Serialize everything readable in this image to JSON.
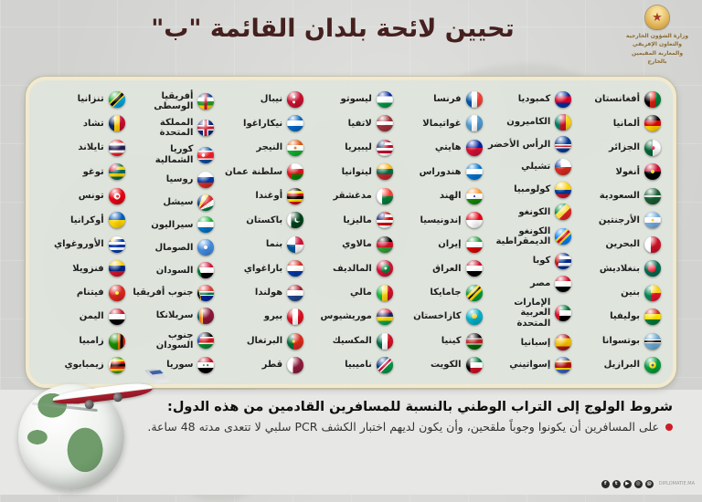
{
  "title": "تحيين لائحة بلدان القائمة \"ب\"",
  "ministry": {
    "emblem": "morocco-coat-of-arms",
    "lines": [
      "وزارة الشؤون الخارجية",
      "والتعاون الإفريقي",
      "والمغاربة المقيمين بالخارج"
    ]
  },
  "colors": {
    "title": "#45201e",
    "card_background": "#dfe4dd",
    "card_border": "#f1ead0",
    "accent_red": "#cf1b24",
    "page_background": "#d2d3d0"
  },
  "columns": [
    [
      {
        "n": "أفغانستان",
        "f": "linear-gradient(90deg,#000 33%,#d32011 33% 67%,#007a36 67%)"
      },
      {
        "n": "ألمانيا",
        "f": "linear-gradient(180deg,#000 33%,#dd0000 33% 67%,#ffce00 67%)"
      },
      {
        "n": "الجزائر",
        "f": "radial-gradient(circle at 52% 50%,#d21034 15%,rgba(0,0,0,0) 16%),linear-gradient(90deg,#006233 50%,#fff 50%)"
      },
      {
        "n": "أنغولا",
        "f": "radial-gradient(circle at 50% 50%,#ffcb00 15%,rgba(0,0,0,0) 16%),linear-gradient(180deg,#cc092f 50%,#000 50%)"
      },
      {
        "n": "السعودية",
        "f": "linear-gradient(0deg,rgba(0,0,0,0) 44%,rgba(255,255,255,.85) 44% 56%,rgba(0,0,0,0) 56%),#165d31"
      },
      {
        "n": "الأرجنتين",
        "f": "radial-gradient(circle at 50% 50%,#f6b40e 10%,rgba(0,0,0,0) 11%),linear-gradient(180deg,#74acdf 33%,#fff 33% 67%,#74acdf 67%)"
      },
      {
        "n": "البحرين",
        "f": "linear-gradient(90deg,#fff 38%,#ce1126 38%)"
      },
      {
        "n": "بنغلاديش",
        "f": "radial-gradient(circle at 45% 50%,#f42a41 32%,#006a4e 33%)"
      },
      {
        "n": "بنين",
        "f": "linear-gradient(90deg,#008751 40%,rgba(0,0,0,0) 40%),linear-gradient(180deg,#fcd116 50%,#e8112d 50%)"
      },
      {
        "n": "بوليفيا",
        "f": "linear-gradient(180deg,#d52b1e 33%,#f9e300 33% 67%,#007934 67%)"
      },
      {
        "n": "بوتسوانا",
        "f": "linear-gradient(180deg,#6da9d2 38%,#fff 38% 45%,#000 45% 55%,#fff 55% 62%,#6da9d2 62%)"
      },
      {
        "n": "البرازيل",
        "f": "radial-gradient(circle at 50% 50%,#002776 10%,#ffdf00 11% 29%,#009c3b 30%)"
      }
    ],
    [
      {
        "n": "كمبوديا",
        "f": "linear-gradient(180deg,#032ea1 30%,#e00025 30% 70%,#032ea1 70%)"
      },
      {
        "n": "الكاميرون",
        "f": "linear-gradient(90deg,#007a5e 33%,#ce1126 33% 67%,#fcd116 67%)"
      },
      {
        "n": "الرأس الأخضر",
        "f": "linear-gradient(180deg,#003893 50%,#fff 50% 58%,#cf2027 58% 66%,#fff 66% 74%,#003893 74%)"
      },
      {
        "n": "تشيلي",
        "f": "linear-gradient(0deg,#d52b1e 50%,rgba(0,0,0,0) 50%),linear-gradient(90deg,#0039a6 35%,#fff 35%)"
      },
      {
        "n": "كولومبيا",
        "f": "linear-gradient(180deg,#fcd116 50%,#003893 50% 75%,#ce1126 75%)"
      },
      {
        "n": "الكونغو",
        "f": "linear-gradient(135deg,#009543 35%,#fbde4a 35% 60%,#dc241f 60%)"
      },
      {
        "n": "الكونغو الديمقراطية",
        "f": "linear-gradient(135deg,#007fff 38%,#f7d618 38% 46%,#ce1021 46% 58%,#f7d618 58% 66%,#007fff 66%)"
      },
      {
        "n": "كوبا",
        "f": "linear-gradient(100deg,#cb1515 28%,rgba(0,0,0,0) 29%),linear-gradient(180deg,#002a8f 20%,#fff 20% 40%,#002a8f 40% 60%,#fff 60% 80%,#002a8f 80%)"
      },
      {
        "n": "مصر",
        "f": "linear-gradient(180deg,#ce1126 33%,#fff 33% 67%,#000 67%)"
      },
      {
        "n": "الإمارات العربية المتحدة",
        "f": "linear-gradient(90deg,#ce1126 28%,rgba(0,0,0,0) 28%),linear-gradient(180deg,#00732f 33%,#fff 33% 67%,#000 67%)"
      },
      {
        "n": "إسبانيا",
        "f": "linear-gradient(180deg,#aa151b 25%,#f1bf00 25% 75%,#aa151b 75%)"
      },
      {
        "n": "إسواتيني",
        "f": "linear-gradient(180deg,#3e5eb9 22%,#ffd900 22% 32%,#b10c0c 32% 68%,#ffd900 68% 78%,#3e5eb9 78%)"
      }
    ],
    [
      {
        "n": "فرنسا",
        "f": "linear-gradient(90deg,#0055a4 33%,#fff 33% 67%,#ef4135 67%)"
      },
      {
        "n": "غواتيمالا",
        "f": "linear-gradient(90deg,#4997d0 33%,#fff 33% 67%,#4997d0 67%)"
      },
      {
        "n": "هايتي",
        "f": "linear-gradient(180deg,#00209f 50%,#d21034 50%)"
      },
      {
        "n": "هندوراس",
        "f": "linear-gradient(180deg,#0073cf 33%,#fff 33% 67%,#0073cf 67%)"
      },
      {
        "n": "الهند",
        "f": "radial-gradient(circle at 50% 50%,#000088 8%,rgba(0,0,0,0) 9%),linear-gradient(180deg,#ff9933 33%,#fff 33% 67%,#128807 67%)"
      },
      {
        "n": "إندونيسيا",
        "f": "linear-gradient(180deg,#e70011 50%,#fff 50%)"
      },
      {
        "n": "إيران",
        "f": "linear-gradient(180deg,#239f40 33%,#fff 33% 67%,#da0000 67%)"
      },
      {
        "n": "العراق",
        "f": "linear-gradient(180deg,#ce1126 33%,#fff 33% 67%,#000 67%)"
      },
      {
        "n": "جامايكا",
        "f": "linear-gradient(135deg,#009b3a 36%,#fed100 36% 46%,#000 46% 54%,#fed100 54% 64%,#009b3a 64%)"
      },
      {
        "n": "كازاخستان",
        "f": "radial-gradient(circle at 50% 46%,#fec50c 22%,#00afca 23%)"
      },
      {
        "n": "كينيا",
        "f": "linear-gradient(180deg,#000 30%,#fff 30% 36%,#bb2222 36% 64%,#fff 64% 70%,#006600 70%)"
      },
      {
        "n": "الكويت",
        "f": "linear-gradient(90deg,#000 25%,rgba(0,0,0,0) 25%),linear-gradient(180deg,#007a3d 33%,#fff 33% 67%,#ce1126 67%)"
      }
    ],
    [
      {
        "n": "ليسوتو",
        "f": "linear-gradient(180deg,#00209f 30%,#fff 30% 70%,#009543 70%)"
      },
      {
        "n": "لاتفيا",
        "f": "linear-gradient(180deg,#9e3039 40%,#fff 40% 60%,#9e3039 60%)"
      },
      {
        "n": "ليبيريا",
        "f": "radial-gradient(circle at 22% 22%,#002868 24%,rgba(0,0,0,0) 25%),repeating-linear-gradient(180deg,#bf0a30 0 3px,#fff 3px 6px)"
      },
      {
        "n": "ليتوانيا",
        "f": "linear-gradient(180deg,#fdb913 33%,#006a44 33% 67%,#c1272d 67%)"
      },
      {
        "n": "مدغشقر",
        "f": "linear-gradient(90deg,#fff 33%,rgba(0,0,0,0) 33%),linear-gradient(180deg,#fc3d32 50%,#007e3a 50%)"
      },
      {
        "n": "ماليزيا",
        "f": "radial-gradient(circle at 22% 22%,#010066 25%,rgba(0,0,0,0) 26%),repeating-linear-gradient(180deg,#cc0001 0 3px,#fff 3px 6px)"
      },
      {
        "n": "مالاوي",
        "f": "linear-gradient(180deg,#000 33%,#ce1126 33% 67%,#339e35 67%)"
      },
      {
        "n": "المالديف",
        "f": "radial-gradient(circle at 55% 50%,#fff 10%,#00843d 11% 36%,#d21034 37%)"
      },
      {
        "n": "مالي",
        "f": "linear-gradient(90deg,#14b53a 33%,#fcd116 33% 67%,#ce1126 67%)"
      },
      {
        "n": "موريشيوس",
        "f": "linear-gradient(180deg,#ea2839 25%,#1a206d 25% 50%,#ffd500 50% 75%,#00a551 75%)"
      },
      {
        "n": "المكسيك",
        "f": "linear-gradient(90deg,#006847 33%,#fff 33% 67%,#ce1126 67%)"
      },
      {
        "n": "ناميبيا",
        "f": "linear-gradient(135deg,#003580 40%,#fff 40% 45%,#d21034 45% 55%,#fff 55% 60%,#009543 60%)"
      }
    ],
    [
      {
        "n": "نيبال",
        "f": "radial-gradient(circle at 42% 34%,#fff 9%,rgba(0,0,0,0) 10%),radial-gradient(circle at 42% 66%,#fff 9%,rgba(0,0,0,0) 10%),#c8102e"
      },
      {
        "n": "نيكاراغوا",
        "f": "linear-gradient(180deg,#0067c6 33%,#fff 33% 67%,#0067c6 67%)"
      },
      {
        "n": "النيجر",
        "f": "radial-gradient(circle at 50% 50%,#e05206 11%,rgba(0,0,0,0) 12%),linear-gradient(180deg,#e05206 33%,#fff 33% 67%,#0db02b 67%)"
      },
      {
        "n": "سلطنة عمان",
        "f": "linear-gradient(90deg,#db161b 28%,rgba(0,0,0,0) 28%),linear-gradient(180deg,#fff 33%,#db161b 33% 67%,#008000 67%)"
      },
      {
        "n": "أوغندا",
        "f": "linear-gradient(180deg,#000 17%,#fcdc04 17% 33%,#d90000 33% 50%,#000 50% 67%,#fcdc04 67% 83%,#d90000 83%)"
      },
      {
        "n": "باكستان",
        "f": "radial-gradient(circle at 68% 44%,#01411c 15%,rgba(0,0,0,0) 16%),radial-gradient(circle at 62% 50%,#fff 19%,rgba(0,0,0,0) 20%),linear-gradient(90deg,#fff 25%,#01411c 25%)"
      },
      {
        "n": "بنما",
        "f": "conic-gradient(from 0deg at 50% 50%,#d21034 0 25%,#fff 25% 50%,#005293 50% 75%,#fff 75%)"
      },
      {
        "n": "باراغواي",
        "f": "linear-gradient(180deg,#d52b1e 33%,#fff 33% 67%,#0038a8 67%)"
      },
      {
        "n": "هولندا",
        "f": "linear-gradient(180deg,#ae1c28 33%,#fff 33% 67%,#21468b 67%)"
      },
      {
        "n": "بيرو",
        "f": "linear-gradient(90deg,#d91023 33%,#fff 33% 67%,#d91023 67%)"
      },
      {
        "n": "البرتغال",
        "f": "radial-gradient(circle at 40% 50%,#ffcc00 11%,rgba(0,0,0,0) 12%),linear-gradient(90deg,#046a38 40%,#da291c 40%)"
      },
      {
        "n": "قطر",
        "f": "linear-gradient(90deg,#fff 35%,#8d1b3d 35%)"
      }
    ],
    [
      {
        "n": "أفريقيا الوسطى",
        "f": "linear-gradient(90deg,rgba(0,0,0,0) 42%,#d21034 42% 58%,rgba(0,0,0,0) 58%),linear-gradient(180deg,#003082 25%,#fff 25% 50%,#289728 50% 75%,#ffce00 75%)"
      },
      {
        "n": "المملكة المتحدة",
        "f": "linear-gradient(0deg,rgba(0,0,0,0) 41%,#cf142b 41% 59%,rgba(0,0,0,0) 59%),linear-gradient(90deg,rgba(0,0,0,0) 41%,#cf142b 41% 59%,rgba(0,0,0,0) 59%),linear-gradient(0deg,rgba(0,0,0,0) 33%,#fff 33% 67%,rgba(0,0,0,0) 67%),linear-gradient(90deg,rgba(0,0,0,0) 33%,#fff 33% 67%,rgba(0,0,0,0) 67%),#00247d"
      },
      {
        "n": "كوريا الشمالية",
        "f": "radial-gradient(circle at 36% 50%,#fff 12%,rgba(0,0,0,0) 13%),linear-gradient(180deg,#024fa2 22%,#fff 22% 30%,#ed1c27 30% 70%,#fff 70% 78%,#024fa2 78%)"
      },
      {
        "n": "روسيا",
        "f": "linear-gradient(180deg,#fff 33%,#0039a6 33% 67%,#d52b1e 67%)"
      },
      {
        "n": "سيشل",
        "f": "conic-gradient(from 0deg at 0% 100%,#003f87 0 18deg,#fcd856 18deg 36deg,#d62828 36deg 54deg,#fff 54deg 72deg,#007a3d 72deg 90deg,#007a3d 90deg)"
      },
      {
        "n": "سيراليون",
        "f": "linear-gradient(180deg,#1eb53a 33%,#fff 33% 67%,#0072c6 67%)"
      },
      {
        "n": "الصومال",
        "f": "radial-gradient(circle at 50% 50%,#fff 15%,#4189dd 16%)"
      },
      {
        "n": "السودان",
        "f": "linear-gradient(75deg,#007229 22%,rgba(0,0,0,0) 23%),linear-gradient(180deg,#d21034 33%,#fff 33% 67%,#000 67%)"
      },
      {
        "n": "جنوب أفريقيا",
        "f": "linear-gradient(80deg,#000 16%,#ffb612 17% 20%,rgba(0,0,0,0) 21%),linear-gradient(180deg,#de3831 40%,#fff 40% 47%,#007749 47% 60%,#fff 60% 67%,#002395 67%)"
      },
      {
        "n": "سريلانكا",
        "f": "linear-gradient(90deg,#005c54 12%,#ff7420 12% 24%,#ffbe29 24% 32%,#8d153a 32%)"
      },
      {
        "n": "جنوب السودان",
        "f": "linear-gradient(105deg,#0f47af 20%,rgba(0,0,0,0) 21%),linear-gradient(180deg,#000 29%,#fff 29% 36%,#da121a 36% 64%,#fff 64% 71%,#078930 71%)"
      },
      {
        "n": "سوريا",
        "f": "radial-gradient(circle at 38% 50%,#007a3d 7%,rgba(0,0,0,0) 8%),radial-gradient(circle at 62% 50%,#007a3d 7%,rgba(0,0,0,0) 8%),linear-gradient(180deg,#ce1126 33%,#fff 33% 67%,#000 67%)"
      }
    ],
    [
      {
        "n": "تنزانيا",
        "f": "linear-gradient(135deg,#1eb53a 38%,#fcd116 38% 44%,#000 44% 56%,#fcd116 56% 62%,#00a3dd 62%)"
      },
      {
        "n": "تشاد",
        "f": "linear-gradient(90deg,#002664 33%,#fecb00 33% 67%,#c60c30 67%)"
      },
      {
        "n": "تايلاند",
        "f": "linear-gradient(180deg,#ed1c24 20%,#fff 20% 35%,#241d4f 35% 65%,#fff 65% 80%,#ed1c24 80%)"
      },
      {
        "n": "توغو",
        "f": "radial-gradient(circle at 20% 20%,#d21034 25%,rgba(0,0,0,0) 26%),linear-gradient(180deg,#006a4e 20%,#ffce00 20% 40%,#006a4e 40% 60%,#ffce00 60% 80%,#006a4e 80%)"
      },
      {
        "n": "تونس",
        "f": "radial-gradient(circle at 53% 50%,#e70013 11%,rgba(0,0,0,0) 12%),radial-gradient(circle at 50% 50%,#fff 27%,#e70013 28%)"
      },
      {
        "n": "أوكرانيا",
        "f": "linear-gradient(180deg,#005bbb 50%,#ffd500 50%)"
      },
      {
        "n": "الأوروغواي",
        "f": "radial-gradient(circle at 22% 22%,#fcd116 11%,rgba(0,0,0,0) 12%),repeating-linear-gradient(180deg,#fff 0 3px,#0038a8 3px 6px)"
      },
      {
        "n": "فنزويلا",
        "f": "linear-gradient(180deg,#ffcc00 33%,#00247d 33% 67%,#cf142b 67%)"
      },
      {
        "n": "فيتنام",
        "f": "radial-gradient(circle at 50% 50%,#ffff00 14%,rgba(0,0,0,0) 15%),#da251d"
      },
      {
        "n": "اليمن",
        "f": "linear-gradient(180deg,#ce1126 33%,#fff 33% 67%,#000 67%)"
      },
      {
        "n": "زامبيا",
        "f": "linear-gradient(90deg,rgba(0,0,0,0) 55%,#ef7d00 55% 70%,#000 70% 85%,#de2010 85%),#198a00"
      },
      {
        "n": "زيمبابوي",
        "f": "linear-gradient(100deg,#fff 16%,rgba(0,0,0,0) 17%),linear-gradient(180deg,#319208 14%,#ffd200 14% 28%,#de2010 28% 42%,#000 42% 58%,#de2010 58% 72%,#ffd200 72% 86%,#319208 86%)"
      }
    ]
  ],
  "conditions": {
    "heading": "شروط الولوج إلى التراب الوطني بالنسبة للمسافرين القادمين من هذه الدول:",
    "bullets": [
      "على المسافرين أن يكونوا وجوباً ملقحين، وأن يكون لديهم اختبار الكشف PCR سلبي لا تتعدى مدته 48 ساعة."
    ]
  },
  "graphics": {
    "globe": "globe-with-airplane",
    "emblem_glyph": "★"
  },
  "footer": {
    "social": [
      {
        "name": "facebook-icon",
        "glyph": "f"
      },
      {
        "name": "twitter-icon",
        "glyph": "t"
      },
      {
        "name": "youtube-icon",
        "glyph": "▶"
      },
      {
        "name": "instagram-icon",
        "glyph": "◎"
      },
      {
        "name": "website-icon",
        "glyph": "@"
      }
    ],
    "site": "DIPLOMATIE.MA"
  }
}
